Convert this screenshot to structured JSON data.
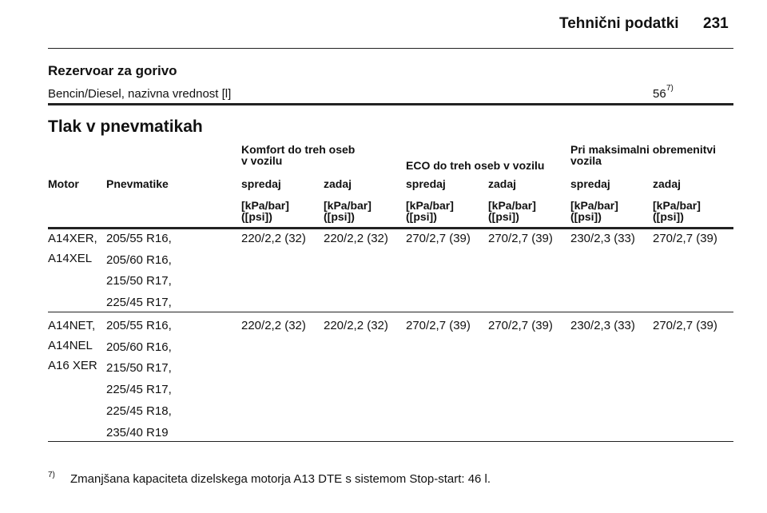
{
  "header": {
    "title": "Tehnični podatki",
    "page": "231"
  },
  "fuel": {
    "title": "Rezervoar za gorivo",
    "label": "Bencin/Diesel, nazivna vrednost [l]",
    "value": "56",
    "note_ref": "7)"
  },
  "tyres": {
    "title": "Tlak v pnevmatikah",
    "groups": [
      [
        "Komfort do treh oseb",
        "v vozilu"
      ],
      [
        "ECO do treh oseb v vozilu"
      ],
      [
        "Pri maksimalni obremenitvi",
        "vozila"
      ]
    ],
    "columns": [
      "Motor",
      "Pnevmatike",
      "spredaj",
      "zadaj",
      "spredaj",
      "zadaj",
      "spredaj",
      "zadaj"
    ],
    "units": [
      [
        "[kPa/bar]",
        "([psi])"
      ],
      [
        "[kPa/bar]",
        "([psi])"
      ],
      [
        "[kPa/bar]",
        "([psi])"
      ],
      [
        "[kPa/bar]",
        "([psi])"
      ],
      [
        "[kPa/bar]",
        "([psi])"
      ],
      [
        "[kPa/bar]",
        "([psi])"
      ]
    ],
    "rows": [
      {
        "motors": [
          "A14XER,",
          "A14XEL"
        ],
        "tyres": [
          "205/55 R16,",
          "205/60 R16,",
          "215/50 R17,",
          "225/45 R17,"
        ],
        "values": [
          "220/2,2 (32)",
          "220/2,2 (32)",
          "270/2,7 (39)",
          "270/2,7 (39)",
          "230/2,3 (33)",
          "270/2,7 (39)"
        ]
      },
      {
        "motors": [
          "A14NET,",
          "A14NEL",
          "A16 XER"
        ],
        "tyres": [
          "205/55 R16,",
          "205/60 R16,",
          "215/50 R17,",
          "225/45 R17,",
          "225/45 R18,",
          "235/40 R19"
        ],
        "values": [
          "220/2,2 (32)",
          "220/2,2 (32)",
          "270/2,7 (39)",
          "270/2,7 (39)",
          "230/2,3 (33)",
          "270/2,7 (39)"
        ]
      }
    ]
  },
  "footnote": {
    "ref": "7)",
    "text": "Zmanjšana kapaciteta dizelskega motorja A13 DTE s sistemom Stop-start: 46 l."
  }
}
